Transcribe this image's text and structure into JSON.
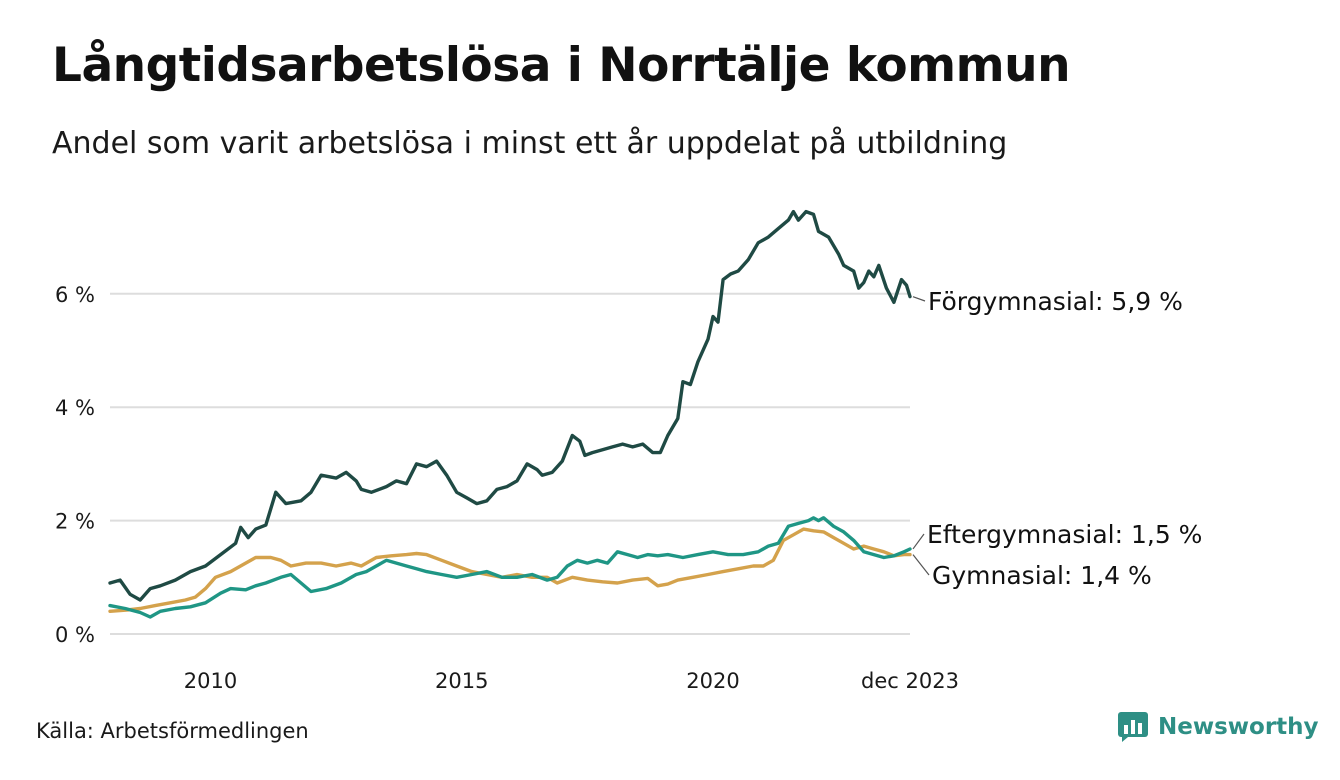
{
  "header": {
    "title": "Långtidsarbetslösa i Norrtälje kommun",
    "subtitle": "Andel som varit arbetslösa i minst ett år uppdelat på utbildning"
  },
  "footer": {
    "source": "Källa: Arbetsförmedlingen",
    "brand": "Newsworthy"
  },
  "colors": {
    "forgymnasial": "#1f4a44",
    "eftergymnasial": "#1f9685",
    "gymnasial": "#d4a24c",
    "grid": "#dddddd",
    "brand": "#2e8f85"
  },
  "chart_data": {
    "type": "line",
    "title": "Långtidsarbetslösa i Norrtälje kommun",
    "xlabel": "",
    "ylabel": "",
    "ylim": [
      0,
      7.5
    ],
    "xlim": [
      2008.0,
      2023.92
    ],
    "y_ticks": [
      {
        "value": 0,
        "label": "0 %"
      },
      {
        "value": 2,
        "label": "2 %"
      },
      {
        "value": 4,
        "label": "4 %"
      },
      {
        "value": 6,
        "label": "6 %"
      }
    ],
    "x_ticks": [
      {
        "value": 2010,
        "label": "2010"
      },
      {
        "value": 2015,
        "label": "2015"
      },
      {
        "value": 2020,
        "label": "2020"
      },
      {
        "value": 2023.92,
        "label": "dec 2023"
      }
    ],
    "grid": true,
    "series": [
      {
        "name": "Förgymnasial",
        "end_label": "Förgymnasial: 5,9 %",
        "color_key": "forgymnasial",
        "points": [
          [
            2008.0,
            0.9
          ],
          [
            2008.2,
            0.95
          ],
          [
            2008.4,
            0.7
          ],
          [
            2008.6,
            0.6
          ],
          [
            2008.8,
            0.8
          ],
          [
            2009.0,
            0.85
          ],
          [
            2009.3,
            0.95
          ],
          [
            2009.6,
            1.1
          ],
          [
            2009.9,
            1.2
          ],
          [
            2010.2,
            1.4
          ],
          [
            2010.5,
            1.6
          ],
          [
            2010.6,
            1.88
          ],
          [
            2010.75,
            1.7
          ],
          [
            2010.9,
            1.85
          ],
          [
            2011.1,
            1.92
          ],
          [
            2011.3,
            2.5
          ],
          [
            2011.35,
            2.45
          ],
          [
            2011.5,
            2.3
          ],
          [
            2011.8,
            2.35
          ],
          [
            2012.0,
            2.5
          ],
          [
            2012.2,
            2.8
          ],
          [
            2012.5,
            2.75
          ],
          [
            2012.7,
            2.85
          ],
          [
            2012.9,
            2.7
          ],
          [
            2013.0,
            2.55
          ],
          [
            2013.2,
            2.5
          ],
          [
            2013.5,
            2.6
          ],
          [
            2013.7,
            2.7
          ],
          [
            2013.9,
            2.65
          ],
          [
            2014.1,
            3.0
          ],
          [
            2014.3,
            2.95
          ],
          [
            2014.5,
            3.05
          ],
          [
            2014.7,
            2.8
          ],
          [
            2014.9,
            2.5
          ],
          [
            2015.1,
            2.4
          ],
          [
            2015.3,
            2.3
          ],
          [
            2015.5,
            2.35
          ],
          [
            2015.7,
            2.55
          ],
          [
            2015.9,
            2.6
          ],
          [
            2016.1,
            2.7
          ],
          [
            2016.3,
            3.0
          ],
          [
            2016.5,
            2.9
          ],
          [
            2016.6,
            2.8
          ],
          [
            2016.8,
            2.85
          ],
          [
            2017.0,
            3.05
          ],
          [
            2017.2,
            3.5
          ],
          [
            2017.35,
            3.4
          ],
          [
            2017.45,
            3.15
          ],
          [
            2017.6,
            3.2
          ],
          [
            2017.8,
            3.25
          ],
          [
            2018.0,
            3.3
          ],
          [
            2018.2,
            3.35
          ],
          [
            2018.4,
            3.3
          ],
          [
            2018.6,
            3.35
          ],
          [
            2018.8,
            3.2
          ],
          [
            2018.95,
            3.2
          ],
          [
            2019.1,
            3.5
          ],
          [
            2019.3,
            3.8
          ],
          [
            2019.4,
            4.45
          ],
          [
            2019.55,
            4.4
          ],
          [
            2019.7,
            4.8
          ],
          [
            2019.9,
            5.2
          ],
          [
            2020.0,
            5.6
          ],
          [
            2020.1,
            5.5
          ],
          [
            2020.2,
            6.25
          ],
          [
            2020.35,
            6.35
          ],
          [
            2020.5,
            6.4
          ],
          [
            2020.7,
            6.6
          ],
          [
            2020.9,
            6.9
          ],
          [
            2021.1,
            7.0
          ],
          [
            2021.3,
            7.15
          ],
          [
            2021.5,
            7.3
          ],
          [
            2021.6,
            7.45
          ],
          [
            2021.7,
            7.3
          ],
          [
            2021.85,
            7.45
          ],
          [
            2022.0,
            7.4
          ],
          [
            2022.1,
            7.1
          ],
          [
            2022.3,
            7.0
          ],
          [
            2022.5,
            6.7
          ],
          [
            2022.6,
            6.5
          ],
          [
            2022.8,
            6.4
          ],
          [
            2022.9,
            6.1
          ],
          [
            2023.0,
            6.2
          ],
          [
            2023.1,
            6.4
          ],
          [
            2023.2,
            6.3
          ],
          [
            2023.3,
            6.5
          ],
          [
            2023.45,
            6.1
          ],
          [
            2023.6,
            5.85
          ],
          [
            2023.75,
            6.25
          ],
          [
            2023.85,
            6.15
          ],
          [
            2023.92,
            5.95
          ]
        ]
      },
      {
        "name": "Eftergymnasial",
        "end_label": "Eftergymnasial: 1,5 %",
        "color_key": "eftergymnasial",
        "points": [
          [
            2008.0,
            0.5
          ],
          [
            2008.3,
            0.45
          ],
          [
            2008.6,
            0.38
          ],
          [
            2008.8,
            0.3
          ],
          [
            2009.0,
            0.4
          ],
          [
            2009.3,
            0.45
          ],
          [
            2009.6,
            0.48
          ],
          [
            2009.9,
            0.55
          ],
          [
            2010.2,
            0.72
          ],
          [
            2010.4,
            0.8
          ],
          [
            2010.7,
            0.78
          ],
          [
            2010.9,
            0.85
          ],
          [
            2011.1,
            0.9
          ],
          [
            2011.4,
            1.0
          ],
          [
            2011.6,
            1.05
          ],
          [
            2011.8,
            0.9
          ],
          [
            2012.0,
            0.75
          ],
          [
            2012.3,
            0.8
          ],
          [
            2012.6,
            0.9
          ],
          [
            2012.9,
            1.05
          ],
          [
            2013.1,
            1.1
          ],
          [
            2013.3,
            1.2
          ],
          [
            2013.5,
            1.3
          ],
          [
            2013.7,
            1.25
          ],
          [
            2013.9,
            1.2
          ],
          [
            2014.1,
            1.15
          ],
          [
            2014.3,
            1.1
          ],
          [
            2014.6,
            1.05
          ],
          [
            2014.9,
            1.0
          ],
          [
            2015.2,
            1.05
          ],
          [
            2015.5,
            1.1
          ],
          [
            2015.8,
            1.0
          ],
          [
            2016.1,
            1.0
          ],
          [
            2016.4,
            1.05
          ],
          [
            2016.7,
            0.95
          ],
          [
            2016.9,
            1.0
          ],
          [
            2017.1,
            1.2
          ],
          [
            2017.3,
            1.3
          ],
          [
            2017.5,
            1.25
          ],
          [
            2017.7,
            1.3
          ],
          [
            2017.9,
            1.25
          ],
          [
            2018.1,
            1.45
          ],
          [
            2018.3,
            1.4
          ],
          [
            2018.5,
            1.35
          ],
          [
            2018.7,
            1.4
          ],
          [
            2018.9,
            1.38
          ],
          [
            2019.1,
            1.4
          ],
          [
            2019.4,
            1.35
          ],
          [
            2019.7,
            1.4
          ],
          [
            2020.0,
            1.45
          ],
          [
            2020.3,
            1.4
          ],
          [
            2020.6,
            1.4
          ],
          [
            2020.9,
            1.45
          ],
          [
            2021.1,
            1.55
          ],
          [
            2021.3,
            1.6
          ],
          [
            2021.5,
            1.9
          ],
          [
            2021.7,
            1.95
          ],
          [
            2021.9,
            2.0
          ],
          [
            2022.0,
            2.05
          ],
          [
            2022.1,
            2.0
          ],
          [
            2022.2,
            2.05
          ],
          [
            2022.4,
            1.9
          ],
          [
            2022.6,
            1.8
          ],
          [
            2022.8,
            1.65
          ],
          [
            2023.0,
            1.45
          ],
          [
            2023.2,
            1.4
          ],
          [
            2023.4,
            1.35
          ],
          [
            2023.6,
            1.38
          ],
          [
            2023.8,
            1.45
          ],
          [
            2023.92,
            1.5
          ]
        ]
      },
      {
        "name": "Gymnasial",
        "end_label": "Gymnasial: 1,4 %",
        "color_key": "gymnasial",
        "points": [
          [
            2008.0,
            0.4
          ],
          [
            2008.3,
            0.42
          ],
          [
            2008.6,
            0.45
          ],
          [
            2008.9,
            0.5
          ],
          [
            2009.2,
            0.55
          ],
          [
            2009.5,
            0.6
          ],
          [
            2009.7,
            0.65
          ],
          [
            2009.9,
            0.8
          ],
          [
            2010.1,
            1.0
          ],
          [
            2010.4,
            1.1
          ],
          [
            2010.7,
            1.25
          ],
          [
            2010.9,
            1.35
          ],
          [
            2011.2,
            1.35
          ],
          [
            2011.4,
            1.3
          ],
          [
            2011.6,
            1.2
          ],
          [
            2011.9,
            1.25
          ],
          [
            2012.2,
            1.25
          ],
          [
            2012.5,
            1.2
          ],
          [
            2012.8,
            1.25
          ],
          [
            2013.0,
            1.2
          ],
          [
            2013.3,
            1.35
          ],
          [
            2013.6,
            1.38
          ],
          [
            2013.9,
            1.4
          ],
          [
            2014.1,
            1.42
          ],
          [
            2014.3,
            1.4
          ],
          [
            2014.6,
            1.3
          ],
          [
            2014.9,
            1.2
          ],
          [
            2015.2,
            1.1
          ],
          [
            2015.5,
            1.05
          ],
          [
            2015.8,
            1.0
          ],
          [
            2016.1,
            1.05
          ],
          [
            2016.4,
            1.0
          ],
          [
            2016.7,
            1.0
          ],
          [
            2016.9,
            0.9
          ],
          [
            2017.2,
            1.0
          ],
          [
            2017.5,
            0.95
          ],
          [
            2017.8,
            0.92
          ],
          [
            2018.1,
            0.9
          ],
          [
            2018.4,
            0.95
          ],
          [
            2018.7,
            0.98
          ],
          [
            2018.9,
            0.85
          ],
          [
            2019.1,
            0.88
          ],
          [
            2019.3,
            0.95
          ],
          [
            2019.6,
            1.0
          ],
          [
            2019.9,
            1.05
          ],
          [
            2020.2,
            1.1
          ],
          [
            2020.5,
            1.15
          ],
          [
            2020.8,
            1.2
          ],
          [
            2021.0,
            1.2
          ],
          [
            2021.2,
            1.3
          ],
          [
            2021.4,
            1.65
          ],
          [
            2021.6,
            1.75
          ],
          [
            2021.8,
            1.85
          ],
          [
            2022.0,
            1.82
          ],
          [
            2022.2,
            1.8
          ],
          [
            2022.4,
            1.7
          ],
          [
            2022.6,
            1.6
          ],
          [
            2022.8,
            1.5
          ],
          [
            2023.0,
            1.55
          ],
          [
            2023.2,
            1.5
          ],
          [
            2023.4,
            1.45
          ],
          [
            2023.6,
            1.38
          ],
          [
            2023.8,
            1.4
          ],
          [
            2023.92,
            1.4
          ]
        ]
      }
    ]
  }
}
